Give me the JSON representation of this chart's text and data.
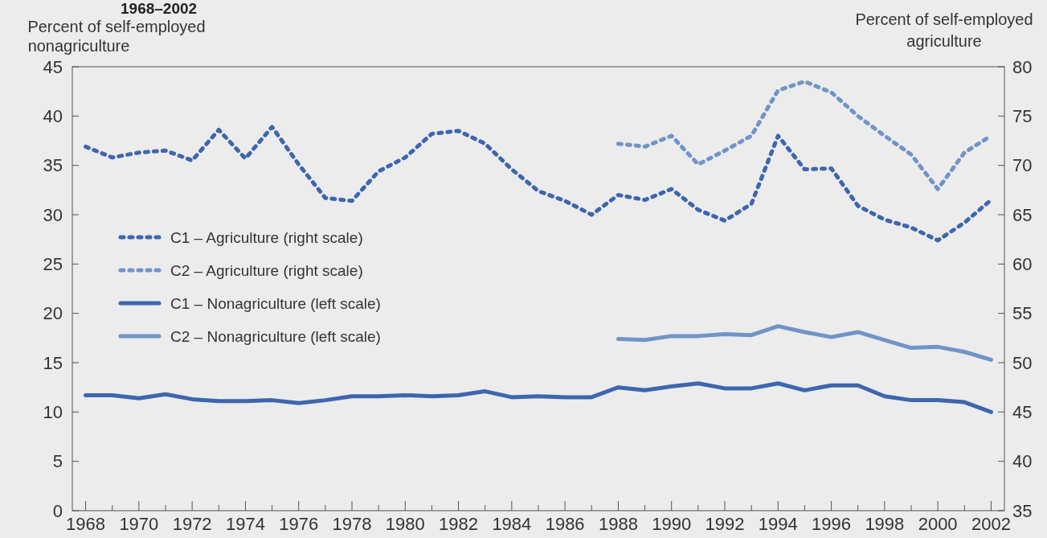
{
  "chart_data": {
    "type": "line",
    "title": "1968–2002",
    "ylabel": "Percent of self-employed nonagriculture",
    "y2label": "Percent of self-employed agriculture",
    "x": [
      1968,
      1969,
      1970,
      1971,
      1972,
      1973,
      1974,
      1975,
      1976,
      1977,
      1978,
      1979,
      1980,
      1981,
      1982,
      1983,
      1984,
      1985,
      1986,
      1987,
      1988,
      1989,
      1990,
      1991,
      1992,
      1993,
      1994,
      1995,
      1996,
      1997,
      1998,
      1999,
      2000,
      2001,
      2002
    ],
    "xlim": [
      1967.5,
      2002.5
    ],
    "xticks": [
      1968,
      {
        "value": 1969,
        "label": null
      },
      1970,
      {
        "value": 1971,
        "label": null
      },
      1972,
      {
        "value": 1973,
        "label": null
      },
      1974,
      {
        "value": 1975,
        "label": null
      },
      1976,
      {
        "value": 1977,
        "label": null
      },
      1978,
      {
        "value": 1979,
        "label": null
      },
      1980,
      {
        "value": 1981,
        "label": null
      },
      1982,
      {
        "value": 1983,
        "label": null
      },
      1984,
      {
        "value": 1985,
        "label": null
      },
      1986,
      {
        "value": 1987,
        "label": null
      },
      1988,
      {
        "value": 1989,
        "label": null
      },
      1990,
      {
        "value": 1991,
        "label": null
      },
      1992,
      {
        "value": 1993,
        "label": null
      },
      1994,
      {
        "value": 1995,
        "label": null
      },
      1996,
      {
        "value": 1997,
        "label": null
      },
      1998,
      {
        "value": 1999,
        "label": null
      },
      2000,
      {
        "value": 2001,
        "label": null
      },
      2002
    ],
    "ylim": [
      0,
      45
    ],
    "yticks": [
      0,
      5,
      10,
      15,
      20,
      25,
      30,
      35,
      40,
      45
    ],
    "y2lim": [
      35,
      80
    ],
    "y2ticks": [
      35,
      40,
      45,
      50,
      55,
      60,
      65,
      70,
      75,
      80
    ],
    "legend": "left",
    "grid": false,
    "series": [
      {
        "name": "C1 – Agriculture (right scale)",
        "color": "#3d66ae",
        "axis": "y2",
        "line_style": "dotted",
        "values": [
          71.9,
          70.8,
          71.3,
          71.5,
          70.5,
          73.6,
          70.7,
          73.9,
          70.1,
          66.7,
          66.4,
          69.4,
          70.8,
          73.2,
          73.5,
          72.2,
          69.6,
          67.4,
          66.4,
          65.0,
          67.0,
          66.5,
          67.6,
          65.5,
          64.4,
          66.1,
          73.0,
          69.6,
          69.7,
          65.9,
          64.5,
          63.7,
          62.4,
          64.2,
          66.5
        ]
      },
      {
        "name": "C2 – Agriculture (right scale)",
        "color": "#7094c9",
        "axis": "y2",
        "line_style": "dotted",
        "values": [
          null,
          null,
          null,
          null,
          null,
          null,
          null,
          null,
          null,
          null,
          null,
          null,
          null,
          null,
          null,
          null,
          null,
          null,
          null,
          null,
          72.2,
          71.9,
          73.0,
          70.1,
          71.5,
          73.0,
          77.6,
          78.5,
          77.4,
          75.0,
          73.0,
          71.1,
          67.6,
          71.3,
          73.0
        ]
      },
      {
        "name": "C1 – Nonagriculture (left scale)",
        "color": "#3d66ae",
        "line_style": "solid",
        "values": [
          11.7,
          11.7,
          11.4,
          11.8,
          11.3,
          11.1,
          11.1,
          11.2,
          10.9,
          11.2,
          11.6,
          11.6,
          11.7,
          11.6,
          11.7,
          12.1,
          11.5,
          11.6,
          11.5,
          11.5,
          12.5,
          12.2,
          12.6,
          12.9,
          12.4,
          12.4,
          12.9,
          12.2,
          12.7,
          12.7,
          11.6,
          11.2,
          11.2,
          11.0,
          10.0
        ]
      },
      {
        "name": "C2 – Nonagriculture (left scale)",
        "color": "#7094c9",
        "line_style": "solid",
        "values": [
          null,
          null,
          null,
          null,
          null,
          null,
          null,
          null,
          null,
          null,
          null,
          null,
          null,
          null,
          null,
          null,
          null,
          null,
          null,
          null,
          17.4,
          17.3,
          17.7,
          17.7,
          17.9,
          17.8,
          18.7,
          18.1,
          17.6,
          18.1,
          17.3,
          16.5,
          16.6,
          16.1,
          15.3
        ]
      }
    ]
  }
}
